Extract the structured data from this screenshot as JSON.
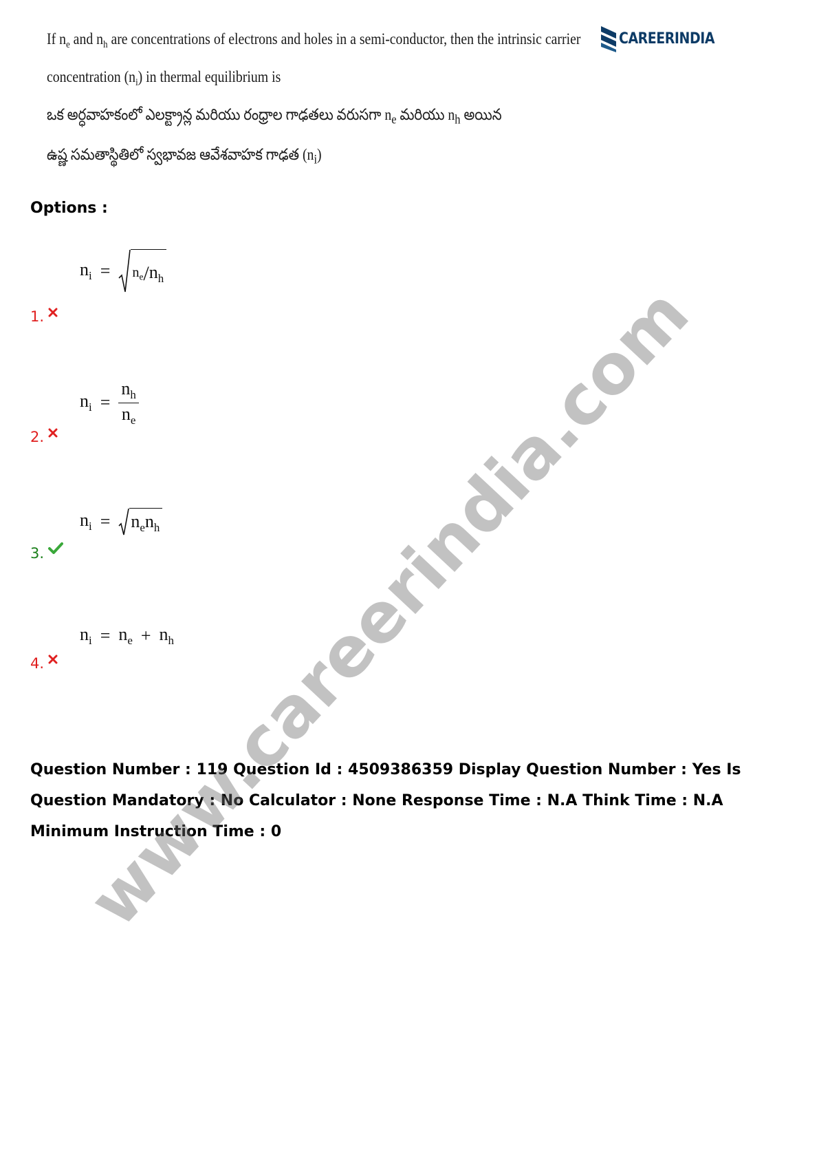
{
  "question": {
    "en_line1_parts": [
      "If n",
      "e",
      " and n",
      "h",
      " are concentrations of electrons and holes in a semi-conductor, then the intrinsic carrier"
    ],
    "en_line2_parts": [
      "concentration (n",
      "i",
      ") in thermal equilibrium is"
    ],
    "te_line1_parts": [
      "ఒక అర్ధవాహకంలో ఎలక్ట్రాన్ల మరియు రంధ్రాల గాఢతలు వరుసగా n",
      "e",
      " మరియు n",
      "h",
      " అయిన"
    ],
    "te_line2_parts": [
      "ఉష్ణ సమతాస్థితిలో స్వభావజ ఆవేశవాహక గాఢత (n",
      "i",
      ")"
    ]
  },
  "logo": {
    "text": "CAREERINDIA",
    "color": "#0d3b66"
  },
  "options_label": "Options :",
  "options": [
    {
      "number": "1.",
      "status": "wrong",
      "formula": {
        "lhs": "n",
        "lhs_sub": "i",
        "eq": "=",
        "type": "sqrt-ratio",
        "a": "n",
        "a_sub": "e",
        "slash": "/",
        "b": "n",
        "b_sub": "h"
      }
    },
    {
      "number": "2.",
      "status": "wrong",
      "formula": {
        "lhs": "n",
        "lhs_sub": "i",
        "eq": "=",
        "type": "fraction",
        "num": "n",
        "num_sub": "h",
        "den": "n",
        "den_sub": "e"
      }
    },
    {
      "number": "3.",
      "status": "correct",
      "formula": {
        "lhs": "n",
        "lhs_sub": "i",
        "eq": "=",
        "type": "sqrt-product",
        "a": "n",
        "a_sub": "e",
        "b": "n",
        "b_sub": "h"
      }
    },
    {
      "number": "4.",
      "status": "wrong",
      "formula": {
        "lhs": "n",
        "lhs_sub": "i",
        "eq": "=",
        "type": "sum",
        "a": "n",
        "a_sub": "e",
        "op": "+",
        "b": "n",
        "b_sub": "h"
      }
    }
  ],
  "info_text": "Question Number : 119 Question Id : 4509386359 Display Question Number : Yes Is Question Mandatory : No Calculator : None Response Time : N.A Think Time : N.A Minimum Instruction Time : 0",
  "watermark": "www.careerindia.com",
  "colors": {
    "wrong": "#e02020",
    "correct": "#1a7f1a",
    "correct_tick": "#3aa83a"
  },
  "icons": {
    "wrong": "cross-icon",
    "correct": "check-icon"
  }
}
